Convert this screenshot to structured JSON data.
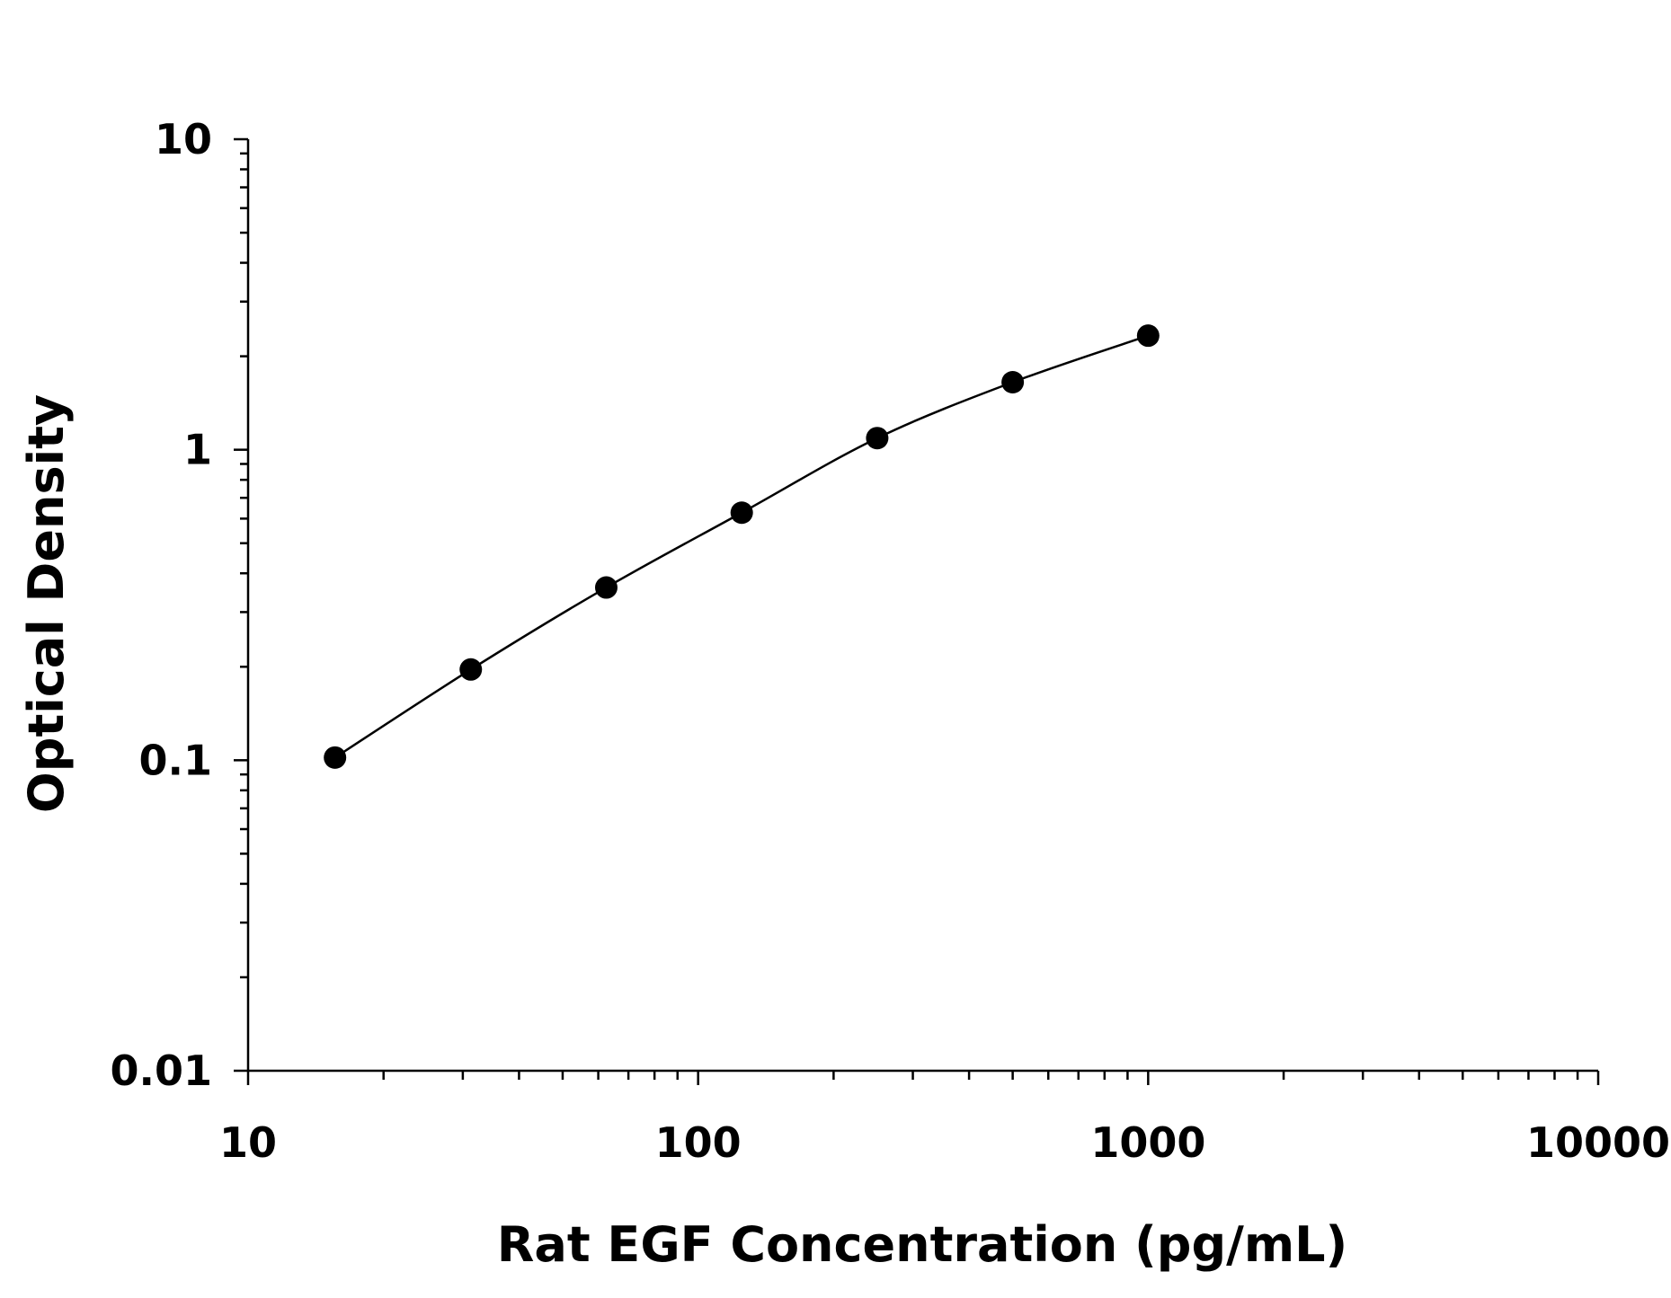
{
  "chart_data": {
    "type": "scatter",
    "xlabel": "Rat EGF Concentration (pg/mL)",
    "ylabel": "Optical Density",
    "x": [
      15.6,
      31.25,
      62.5,
      125,
      250,
      500,
      1000
    ],
    "series": [
      {
        "color": "#000000",
        "values": [
          0.102,
          0.196,
          0.36,
          0.627,
          1.09,
          1.65,
          2.33
        ]
      }
    ],
    "xscale": "log",
    "yscale": "log",
    "xlim": [
      10,
      10000
    ],
    "ylim": [
      0.01,
      10
    ],
    "xticks": [
      10,
      100,
      1000,
      10000
    ],
    "yticks": [
      0.01,
      0.1,
      1,
      10
    ],
    "fit_curve": true
  }
}
